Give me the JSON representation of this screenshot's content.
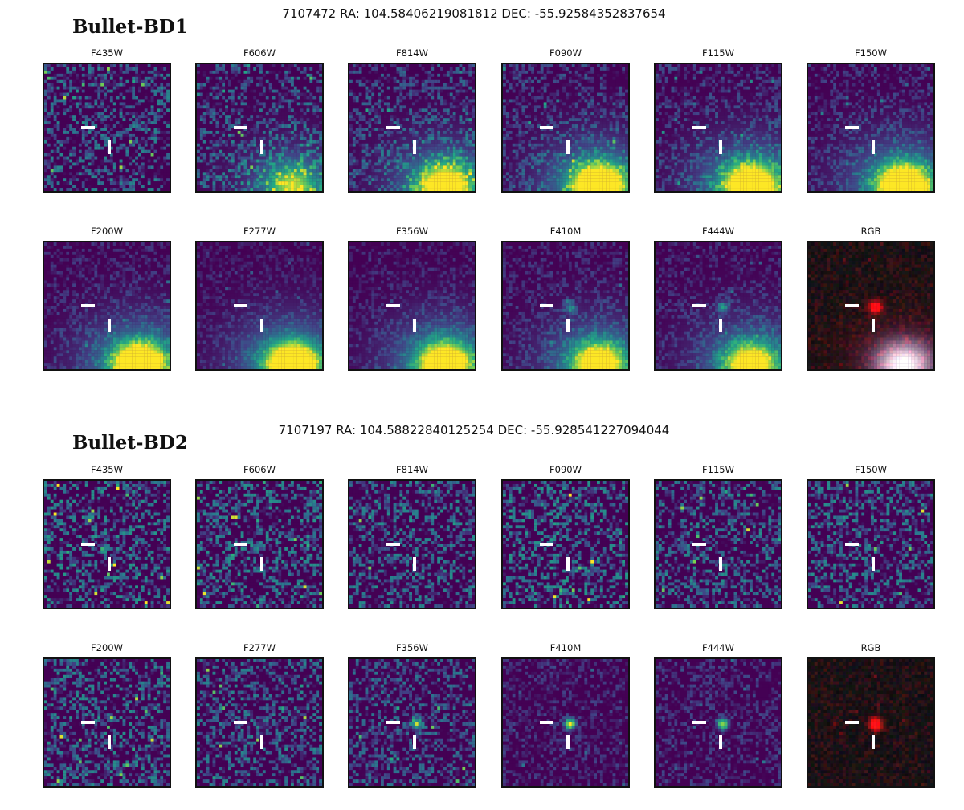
{
  "blocks": [
    {
      "name": "Bullet-BD1",
      "header": "7107472 RA: 104.58406219081812 DEC: -55.92584352837654",
      "rows": [
        [
          {
            "label": "F435W",
            "noise": 0.62,
            "gal": 0.0,
            "src": 0.0
          },
          {
            "label": "F606W",
            "noise": 0.55,
            "gal": 0.55,
            "src": 0.0
          },
          {
            "label": "F814W",
            "noise": 0.48,
            "gal": 0.85,
            "src": 0.0
          },
          {
            "label": "F090W",
            "noise": 0.4,
            "gal": 1.0,
            "src": 0.0
          },
          {
            "label": "F115W",
            "noise": 0.35,
            "gal": 1.0,
            "src": 0.0
          },
          {
            "label": "F150W",
            "noise": 0.3,
            "gal": 1.0,
            "src": 0.0
          }
        ],
        [
          {
            "label": "F200W",
            "noise": 0.25,
            "gal": 1.0,
            "src": 0.0
          },
          {
            "label": "F277W",
            "noise": 0.2,
            "gal": 1.0,
            "src": 0.0
          },
          {
            "label": "F356W",
            "noise": 0.22,
            "gal": 0.95,
            "src": 0.05
          },
          {
            "label": "F410M",
            "noise": 0.25,
            "gal": 0.85,
            "src": 0.45
          },
          {
            "label": "F444W",
            "noise": 0.25,
            "gal": 0.8,
            "src": 0.5
          },
          {
            "label": "RGB",
            "noise": 0.4,
            "gal": 1.0,
            "src": 1.0,
            "rgb": true
          }
        ]
      ]
    },
    {
      "name": "Bullet-BD2",
      "header": "7107197 RA: 104.58822840125254 DEC: -55.928541227094044",
      "rows": [
        [
          {
            "label": "F435W",
            "noise": 0.72,
            "gal": 0.0,
            "src": 0.0
          },
          {
            "label": "F606W",
            "noise": 0.7,
            "gal": 0.0,
            "src": 0.0
          },
          {
            "label": "F814W",
            "noise": 0.66,
            "gal": 0.0,
            "src": 0.0
          },
          {
            "label": "F090W",
            "noise": 0.74,
            "gal": 0.0,
            "src": 0.0
          },
          {
            "label": "F115W",
            "noise": 0.66,
            "gal": 0.0,
            "src": 0.0
          },
          {
            "label": "F150W",
            "noise": 0.68,
            "gal": 0.0,
            "src": 0.0
          }
        ],
        [
          {
            "label": "F200W",
            "noise": 0.68,
            "gal": 0.0,
            "src": 0.0
          },
          {
            "label": "F277W",
            "noise": 0.62,
            "gal": 0.0,
            "src": 0.15
          },
          {
            "label": "F356W",
            "noise": 0.55,
            "gal": 0.0,
            "src": 0.75
          },
          {
            "label": "F410M",
            "noise": 0.28,
            "gal": 0.0,
            "src": 0.9
          },
          {
            "label": "F444W",
            "noise": 0.3,
            "gal": 0.0,
            "src": 0.9
          },
          {
            "label": "RGB",
            "noise": 0.4,
            "gal": 0.0,
            "src": 1.0,
            "rgb": true
          }
        ]
      ]
    }
  ]
}
